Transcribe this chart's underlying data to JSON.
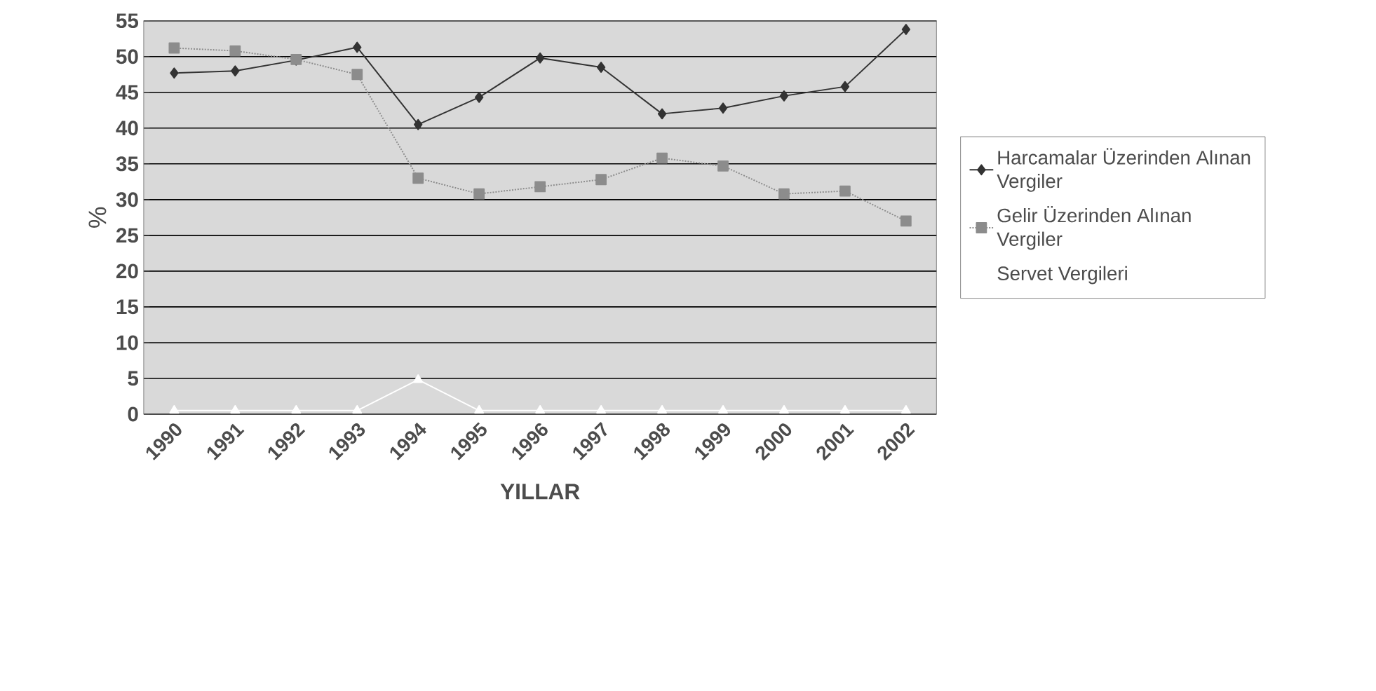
{
  "chart_data": {
    "type": "line",
    "xlabel": "YILLAR",
    "ylabel": "%",
    "categories": [
      "1990",
      "1991",
      "1992",
      "1993",
      "1994",
      "1995",
      "1996",
      "1997",
      "1998",
      "1999",
      "2000",
      "2001",
      "2002"
    ],
    "series": [
      {
        "name": "Harcamalar Üzerinden Alınan Vergiler",
        "color": "#333333",
        "marker": "diamond",
        "line_style": "solid",
        "values": [
          47.7,
          48,
          49.5,
          51.3,
          40.5,
          44.3,
          49.8,
          48.5,
          42,
          42.8,
          44.5,
          45.8,
          53.8
        ]
      },
      {
        "name": "Gelir Üzerinden Alınan Vergiler",
        "color": "#8c8c8c",
        "marker": "square",
        "line_style": "dotted",
        "values": [
          51.2,
          50.8,
          49.6,
          47.5,
          33,
          30.8,
          31.8,
          32.8,
          35.8,
          34.7,
          30.8,
          31.2,
          27
        ]
      },
      {
        "name": "Servet Vergileri",
        "color": "#ffffff",
        "marker": "triangle",
        "line_style": "solid",
        "values": [
          0.5,
          0.5,
          0.5,
          0.5,
          4.8,
          0.5,
          0.5,
          0.5,
          0.5,
          0.5,
          0.5,
          0.5,
          0.5
        ]
      }
    ],
    "ylim": [
      0,
      55
    ],
    "yticks": [
      0,
      5,
      10,
      15,
      20,
      25,
      30,
      35,
      40,
      45,
      50,
      55
    ],
    "grid": "y",
    "legend": "right"
  }
}
